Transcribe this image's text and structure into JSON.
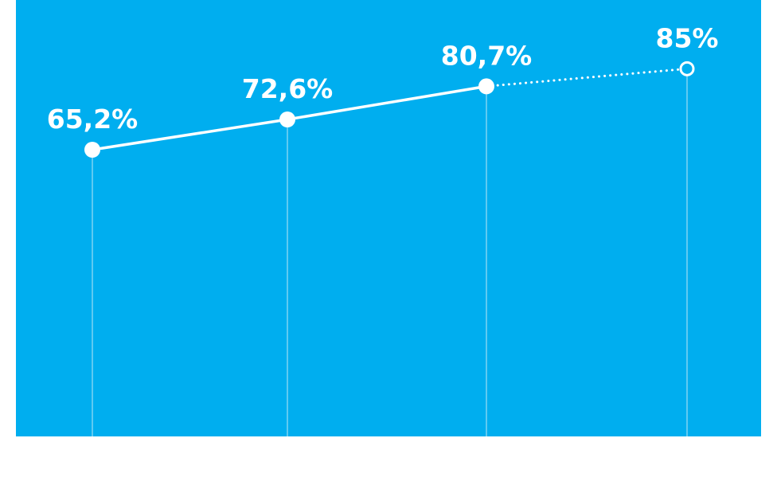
{
  "colors": {
    "panel": "#00AEEF",
    "line": "#ffffff",
    "guide": "#7fd3f3",
    "label": "#ffffff"
  },
  "chart_data": {
    "type": "line",
    "title": "",
    "xlabel": "",
    "ylabel": "",
    "grid": false,
    "legend": "none",
    "ylim": [
      0,
      100
    ],
    "points": [
      {
        "index": 0,
        "value": 65.2,
        "label": "65,2%",
        "projected": false
      },
      {
        "index": 1,
        "value": 72.6,
        "label": "72,6%",
        "projected": false
      },
      {
        "index": 2,
        "value": 80.7,
        "label": "80,7%",
        "projected": false
      },
      {
        "index": 3,
        "value": 85,
        "label": "85%",
        "projected": true
      }
    ]
  }
}
